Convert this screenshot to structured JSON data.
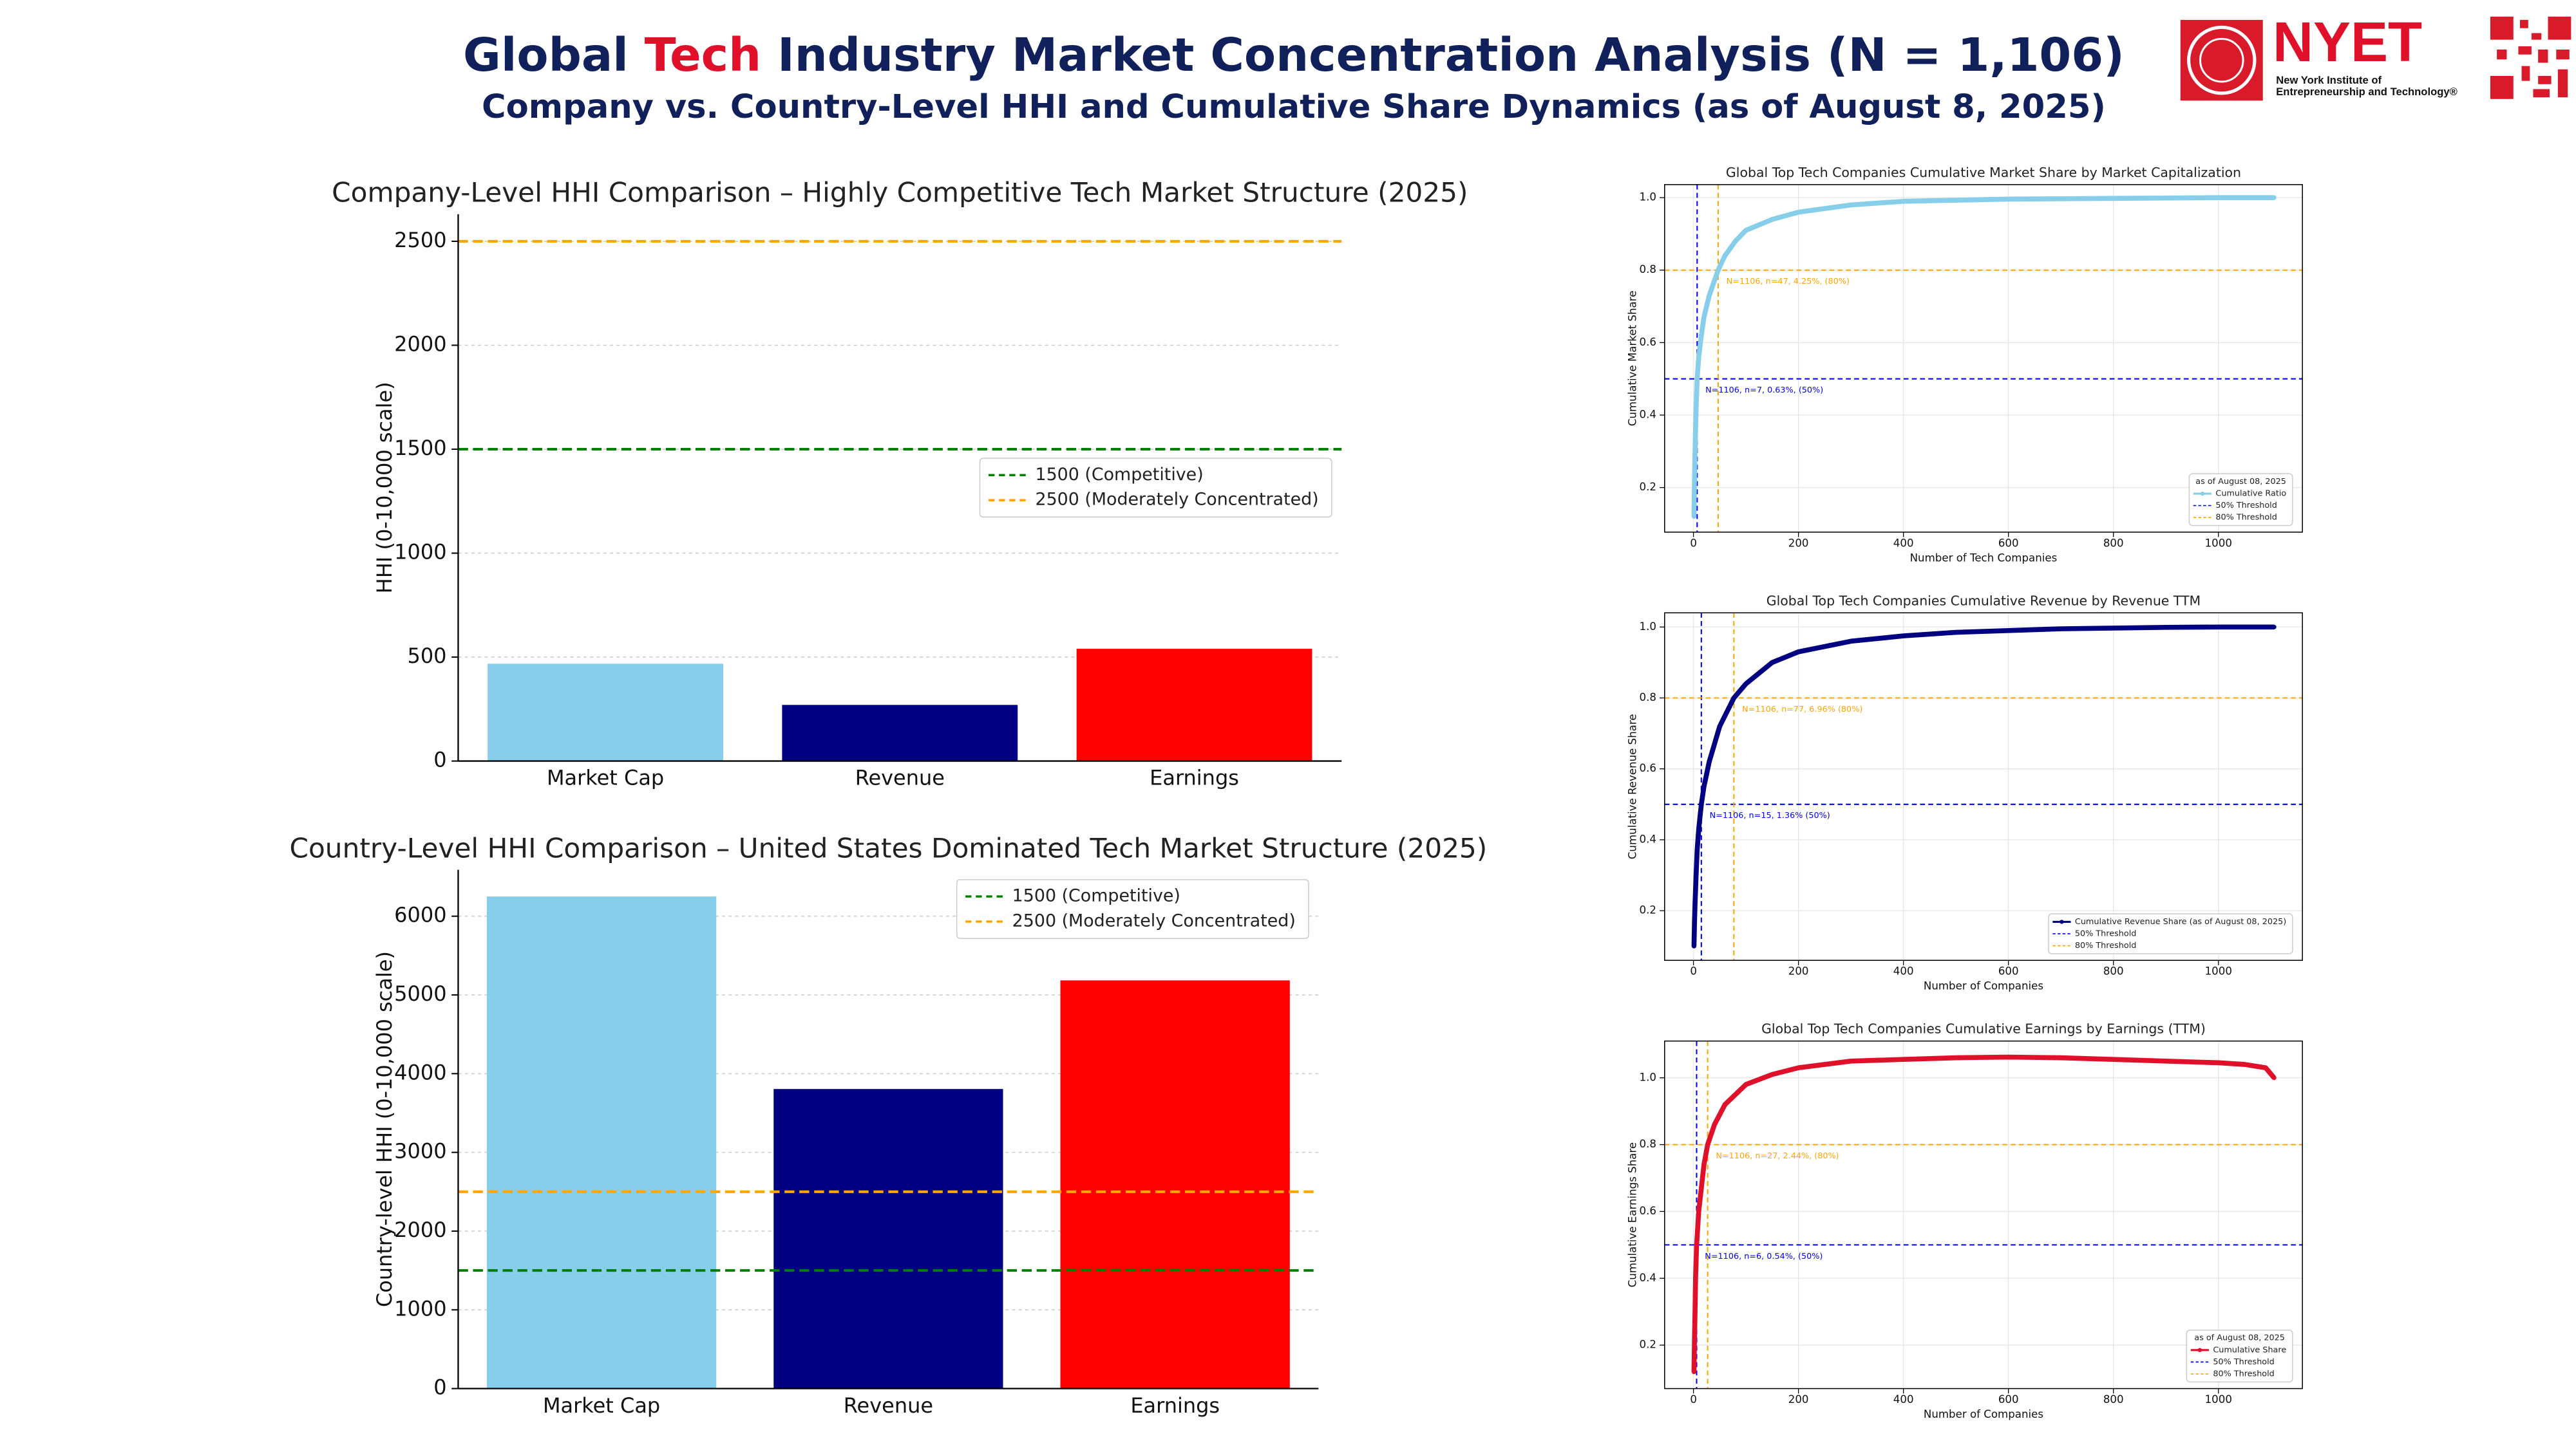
{
  "header": {
    "title_parts": [
      "Global ",
      "Tech",
      " Industry Market Concentration Analysis (N = 1,106)"
    ],
    "subtitle": "Company vs. Country-Level HHI and Cumulative Share Dynamics (as of August 8, 2025)",
    "logo": {
      "name": "NYET",
      "tagline": [
        "New York Institute of",
        "Entrepreneurship and Technology®"
      ]
    }
  },
  "chart_data": [
    {
      "type": "bar",
      "title": "Company-Level HHI Comparison – Highly Competitive Tech Market Structure (2025)",
      "ylabel": "HHI (0-10,000 scale)",
      "categories": [
        "Market Cap",
        "Revenue",
        "Earnings"
      ],
      "values": [
        468,
        270,
        540
      ],
      "colors": [
        "#87ceeb",
        "#000080",
        "#ff0000"
      ],
      "ylim": [
        0,
        2630
      ],
      "yticks": [
        0,
        500,
        1000,
        1500,
        2000,
        2500
      ],
      "grid": true,
      "legend": "center right",
      "ref_lines": [
        {
          "value": 1500,
          "label": "1500 (Competitive)",
          "color": "#008000"
        },
        {
          "value": 2500,
          "label": "2500 (Moderately Concentrated)",
          "color": "#ffa500"
        }
      ]
    },
    {
      "type": "bar",
      "title": "Country-Level HHI Comparison – United States Dominated Tech Market Structure (2025)",
      "ylabel": "Country-level HHI (0-10,000 scale)",
      "categories": [
        "Market Cap",
        "Revenue",
        "Earnings"
      ],
      "values": [
        6250,
        3805,
        5185
      ],
      "colors": [
        "#87ceeb",
        "#000080",
        "#ff0000"
      ],
      "ylim": [
        0,
        6590
      ],
      "yticks": [
        0,
        1000,
        2000,
        3000,
        4000,
        5000,
        6000
      ],
      "grid": true,
      "legend": "upper right",
      "ref_lines": [
        {
          "value": 1500,
          "label": "1500 (Competitive)",
          "color": "#008000"
        },
        {
          "value": 2500,
          "label": "2500 (Moderately Concentrated)",
          "color": "#ffa500"
        }
      ]
    },
    {
      "type": "line",
      "title": "Global Top Tech Companies Cumulative Market Share by Market Capitalization",
      "xlabel": "Number of Tech Companies",
      "ylabel": "Cumulative Market Share",
      "xlim": [
        -55,
        1160
      ],
      "ylim": [
        0.077,
        1.036
      ],
      "xticks": [
        0,
        200,
        400,
        600,
        800,
        1000
      ],
      "yticks": [
        0.2,
        0.4,
        0.6,
        0.8,
        {
          "value": 1,
          "label": "1.0"
        }
      ],
      "grid": true,
      "legend": "lower right",
      "legend_title": "as of August 08, 2025",
      "x": [
        1,
        2,
        3,
        5,
        7,
        10,
        15,
        20,
        30,
        47,
        60,
        80,
        100,
        150,
        200,
        300,
        400,
        500,
        600,
        700,
        800,
        900,
        1000,
        1106
      ],
      "series": [
        {
          "name": "Cumulative Ratio",
          "color": "#87ceeb",
          "values": [
            0.12,
            0.22,
            0.3,
            0.42,
            0.5,
            0.56,
            0.62,
            0.67,
            0.73,
            0.8,
            0.84,
            0.88,
            0.91,
            0.94,
            0.96,
            0.98,
            0.99,
            0.993,
            0.996,
            0.997,
            0.998,
            0.999,
            1,
            1
          ]
        }
      ],
      "thresholds": [
        {
          "y": 0.5,
          "x": 7,
          "color": "#0000ff",
          "label": "50% Threshold",
          "annotation": "N=1106, n=7, 0.63%, (50%)"
        },
        {
          "y": 0.8,
          "x": 47,
          "color": "#ffa500",
          "label": "80% Threshold",
          "annotation": "N=1106, n=47, 4.25%, (80%)"
        }
      ]
    },
    {
      "type": "line",
      "title": "Global Top Tech Companies Cumulative Revenue by Revenue TTM",
      "xlabel": "Number of Companies",
      "ylabel": "Cumulative Revenue Share",
      "xlim": [
        -55,
        1160
      ],
      "ylim": [
        0.06,
        1.04
      ],
      "xticks": [
        0,
        200,
        400,
        600,
        800,
        1000
      ],
      "yticks": [
        0.2,
        0.4,
        0.6,
        0.8,
        {
          "value": 1,
          "label": "1.0"
        }
      ],
      "grid": true,
      "legend": "lower right",
      "x": [
        1,
        2,
        3,
        5,
        7,
        10,
        15,
        20,
        30,
        50,
        77,
        100,
        150,
        200,
        300,
        400,
        500,
        600,
        700,
        800,
        900,
        1000,
        1106
      ],
      "series": [
        {
          "name": "Cumulative Revenue Share (as of August 08, 2025)",
          "color": "#000080",
          "values": [
            0.1,
            0.17,
            0.22,
            0.3,
            0.37,
            0.43,
            0.5,
            0.55,
            0.62,
            0.72,
            0.8,
            0.84,
            0.9,
            0.93,
            0.96,
            0.975,
            0.985,
            0.99,
            0.995,
            0.997,
            0.999,
            1,
            1
          ]
        }
      ],
      "thresholds": [
        {
          "y": 0.5,
          "x": 15,
          "color": "#0000ff",
          "label": "50% Threshold",
          "annotation": "N=1106, n=15, 1.36% (50%)"
        },
        {
          "y": 0.8,
          "x": 77,
          "color": "#ffa500",
          "label": "80% Threshold",
          "annotation": "N=1106, n=77, 6.96% (80%)"
        }
      ]
    },
    {
      "type": "line",
      "title": "Global Top Tech Companies Cumulative Earnings by Earnings (TTM)",
      "xlabel": "Number of Companies",
      "ylabel": "Cumulative Earnings Share",
      "xlim": [
        -55,
        1160
      ],
      "ylim": [
        0.07,
        1.11
      ],
      "xticks": [
        0,
        200,
        400,
        600,
        800,
        1000
      ],
      "yticks": [
        0.2,
        0.4,
        0.6,
        0.8,
        {
          "value": 1,
          "label": "1.0"
        }
      ],
      "grid": true,
      "legend": "lower right",
      "legend_title": "as of August 08, 2025",
      "x": [
        1,
        2,
        3,
        4,
        6,
        10,
        15,
        20,
        27,
        40,
        60,
        100,
        150,
        200,
        300,
        400,
        500,
        600,
        700,
        800,
        900,
        1000,
        1050,
        1090,
        1106
      ],
      "series": [
        {
          "name": "Cumulative Share",
          "color": "#e0102a",
          "values": [
            0.12,
            0.22,
            0.3,
            0.4,
            0.5,
            0.6,
            0.67,
            0.74,
            0.8,
            0.86,
            0.92,
            0.98,
            1.01,
            1.03,
            1.05,
            1.055,
            1.06,
            1.062,
            1.06,
            1.055,
            1.05,
            1.045,
            1.04,
            1.03,
            1
          ]
        }
      ],
      "thresholds": [
        {
          "y": 0.5,
          "x": 6,
          "color": "#0000ff",
          "label": "50% Threshold",
          "annotation": "N=1106, n=6, 0.54%, (50%)"
        },
        {
          "y": 0.8,
          "x": 27,
          "color": "#ffa500",
          "label": "80% Threshold",
          "annotation": "N=1106, n=27, 2.44%, (80%)"
        }
      ]
    }
  ]
}
